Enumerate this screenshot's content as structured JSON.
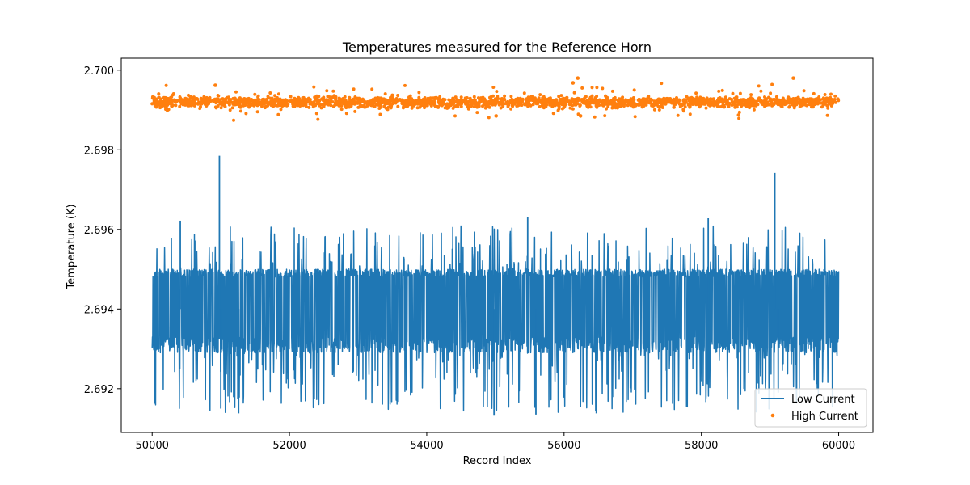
{
  "chart_data": {
    "type": "line",
    "title": "Temperatures measured for the Reference Horn",
    "xlabel": "Record Index",
    "ylabel": "Temperature (K)",
    "xlim": [
      49550,
      60500
    ],
    "ylim": [
      2.6909,
      2.7003
    ],
    "x_ticks": [
      50000,
      52000,
      54000,
      56000,
      58000,
      60000
    ],
    "x_tick_labels": [
      "50000",
      "52000",
      "54000",
      "56000",
      "58000",
      "60000"
    ],
    "y_ticks": [
      2.692,
      2.694,
      2.696,
      2.698,
      2.7
    ],
    "y_tick_labels": [
      "2.692",
      "2.694",
      "2.696",
      "2.698",
      "2.700"
    ],
    "legend_position": "lower-right",
    "x_range": [
      50000,
      60000
    ],
    "series": [
      {
        "name": "Low Current",
        "style": "line",
        "color": "#1f77b4",
        "band": [
          2.6929,
          2.695
        ],
        "spikes": [
          {
            "x": 50980,
            "y": 2.69785
          },
          {
            "x": 59070,
            "y": 2.69742
          },
          {
            "x": 50410,
            "y": 2.69622
          },
          {
            "x": 55470,
            "y": 2.69632
          },
          {
            "x": 58100,
            "y": 2.69628
          },
          {
            "x": 51000,
            "y": 2.6915
          },
          {
            "x": 51260,
            "y": 2.69138
          },
          {
            "x": 54980,
            "y": 2.69132
          },
          {
            "x": 55590,
            "y": 2.69135
          },
          {
            "x": 56470,
            "y": 2.69138
          },
          {
            "x": 59120,
            "y": 2.6919
          }
        ]
      },
      {
        "name": "High Current",
        "style": "scatter",
        "color": "#ff7f0e",
        "band": [
          2.699,
          2.6994
        ],
        "spikes": [
          {
            "x": 56200,
            "y": 2.6998
          },
          {
            "x": 59340,
            "y": 2.6998
          },
          {
            "x": 56130,
            "y": 2.69968
          },
          {
            "x": 50920,
            "y": 2.69962
          },
          {
            "x": 56240,
            "y": 2.69885
          },
          {
            "x": 55010,
            "y": 2.69885
          }
        ]
      }
    ]
  }
}
